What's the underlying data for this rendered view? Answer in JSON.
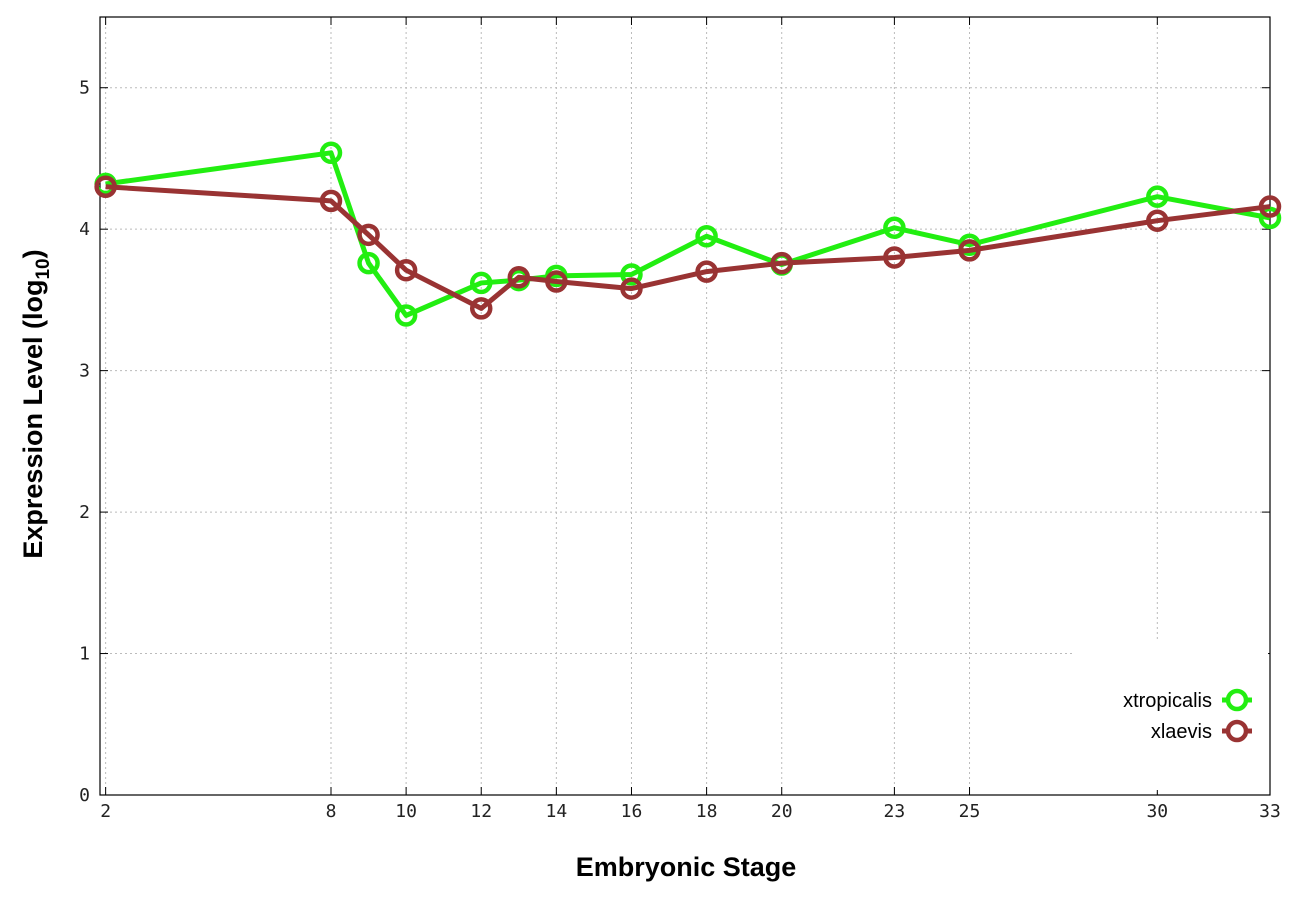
{
  "chart_data": {
    "type": "line",
    "xlabel": "Embryonic Stage",
    "ylabel": "Expression Level (log",
    "ylabel_sub": "10",
    "ylabel_close": ")",
    "xlim": [
      1.85,
      33
    ],
    "ylim": [
      0,
      5.5
    ],
    "x_ticks": [
      2,
      8,
      10,
      12,
      14,
      16,
      18,
      20,
      23,
      25,
      30,
      33
    ],
    "x_tick_labels": [
      "2",
      "8",
      "10",
      "12",
      "14",
      "16",
      "18",
      "20",
      "23",
      "25",
      "30",
      "33"
    ],
    "y_ticks": [
      0,
      1,
      2,
      3,
      4,
      5
    ],
    "y_tick_labels": [
      "0",
      "1",
      "2",
      "3",
      "4",
      "5"
    ],
    "grid": true,
    "legend_position": "bottom-right",
    "series": [
      {
        "name": "xtropicalis",
        "color": "#22ee11",
        "x": [
          2,
          8,
          9,
          10,
          12,
          13,
          14,
          16,
          18,
          20,
          23,
          25,
          30,
          33
        ],
        "y": [
          4.32,
          4.54,
          3.76,
          3.39,
          3.62,
          3.64,
          3.67,
          3.68,
          3.95,
          3.75,
          4.01,
          3.89,
          4.23,
          4.08
        ]
      },
      {
        "name": "xlaevis",
        "color": "#993333",
        "x": [
          2,
          8,
          9,
          10,
          12,
          13,
          14,
          16,
          18,
          20,
          23,
          25,
          30,
          33
        ],
        "y": [
          4.3,
          4.2,
          3.96,
          3.71,
          3.44,
          3.66,
          3.63,
          3.58,
          3.7,
          3.76,
          3.8,
          3.85,
          4.06,
          4.16
        ]
      }
    ]
  }
}
